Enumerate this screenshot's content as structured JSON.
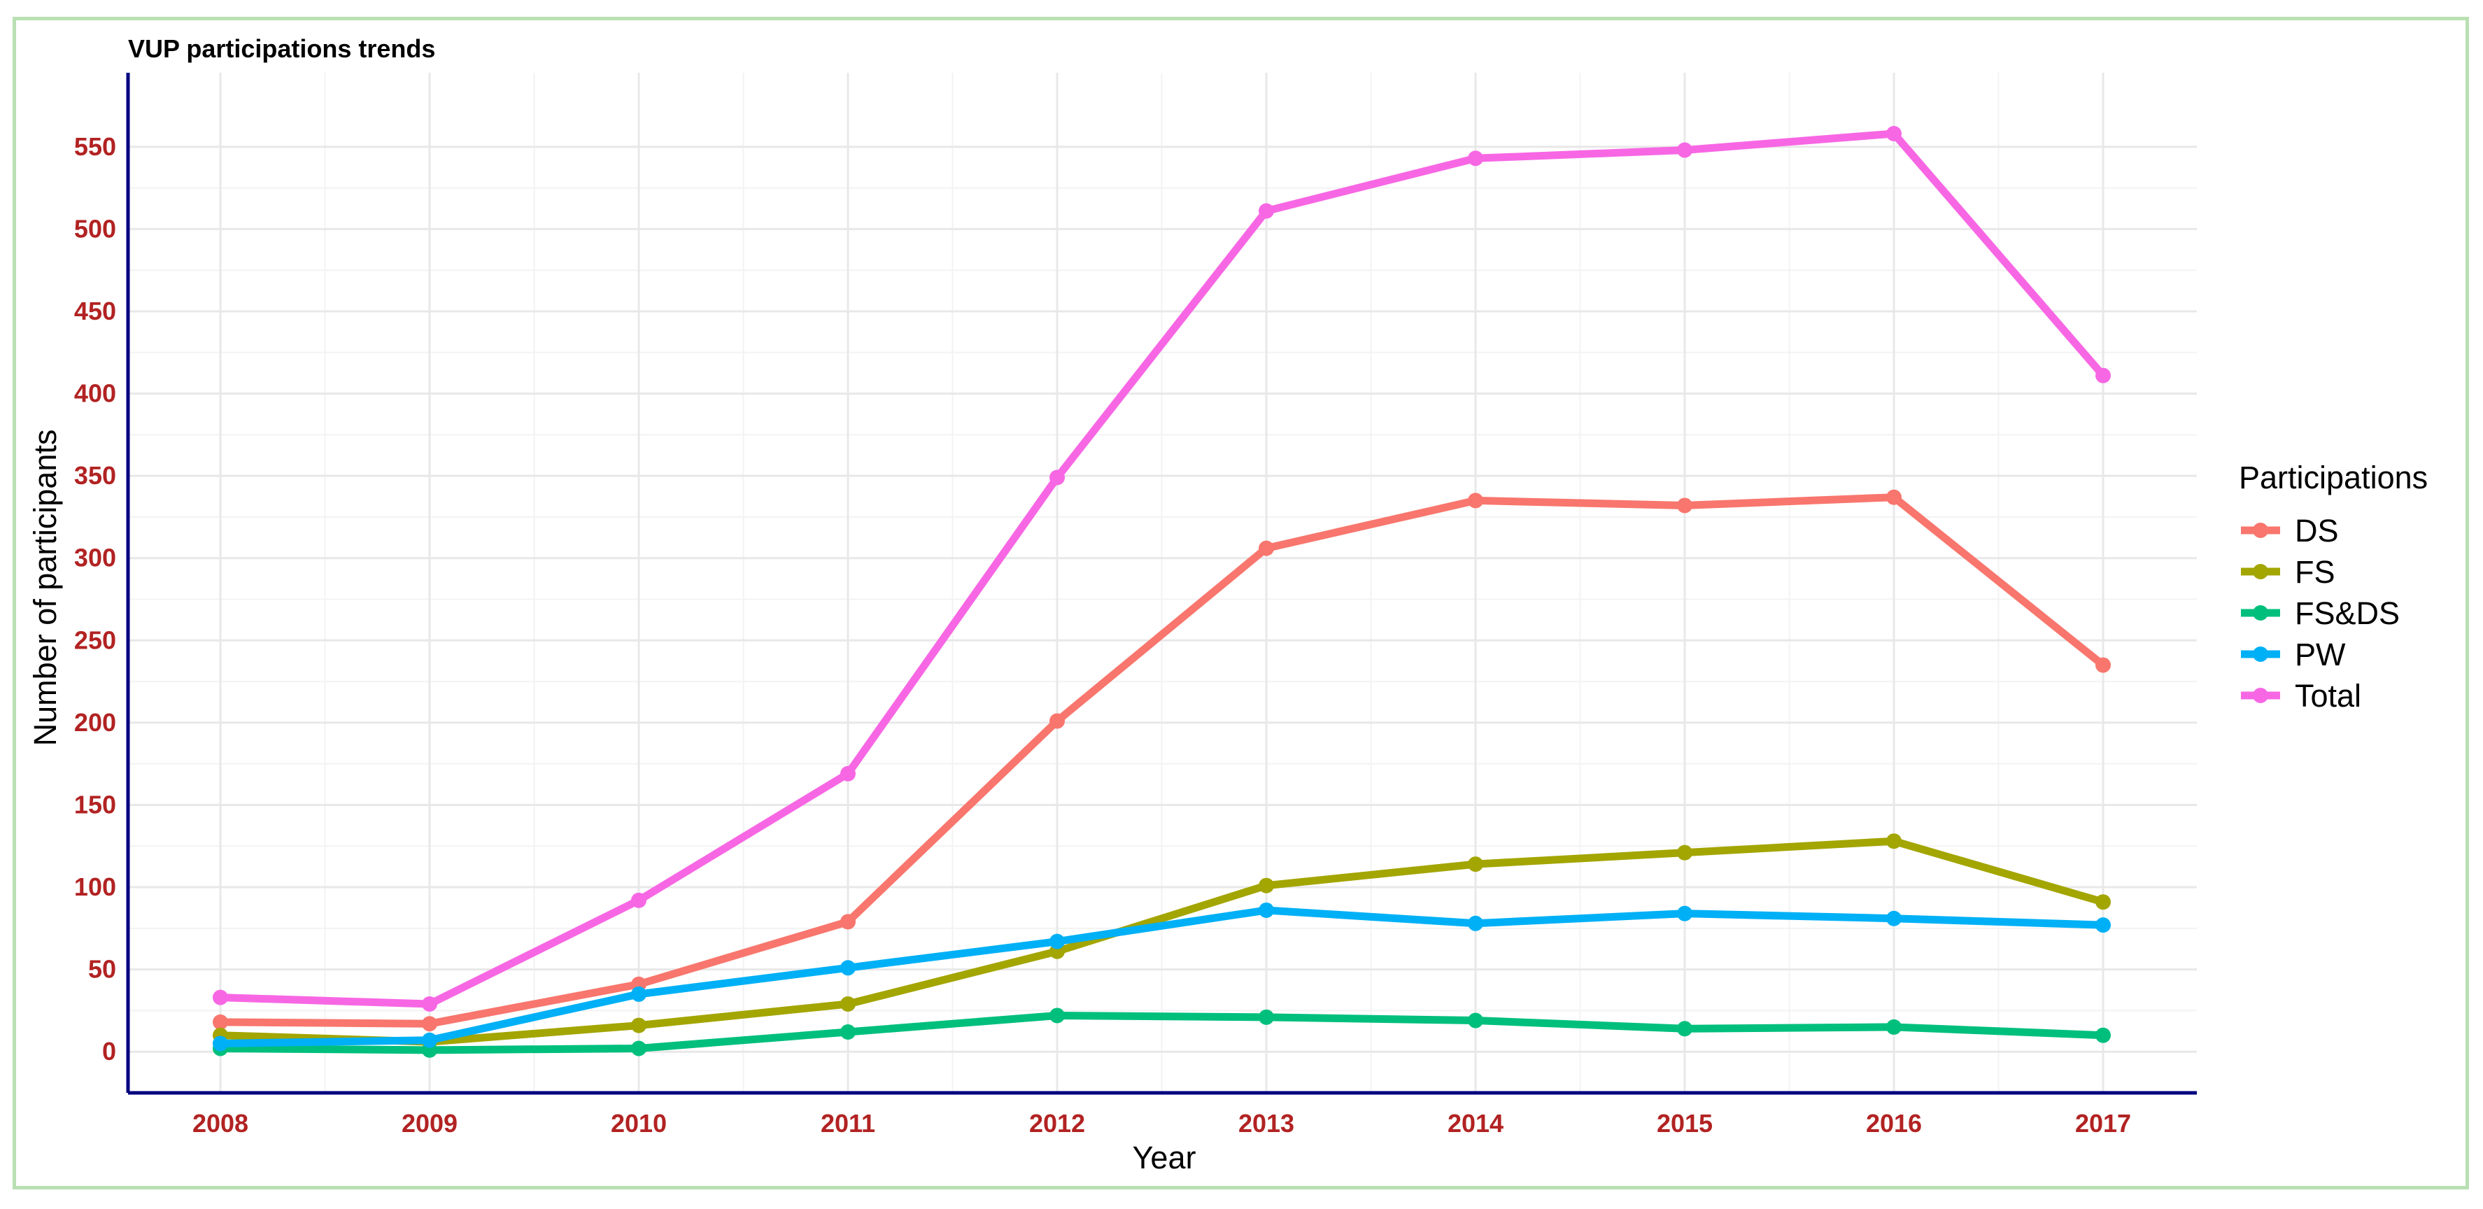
{
  "chart_data": {
    "type": "line",
    "title": "VUP participations trends",
    "xlabel": "Year",
    "ylabel": "Number of participants",
    "categories": [
      "2008",
      "2009",
      "2010",
      "2011",
      "2012",
      "2013",
      "2014",
      "2015",
      "2016",
      "2017"
    ],
    "y_ticks": [
      0,
      50,
      100,
      150,
      200,
      250,
      300,
      350,
      400,
      450,
      500,
      550
    ],
    "ylim": [
      -25,
      595
    ],
    "grid": true,
    "legend_title": "Participations",
    "legend_position": "right",
    "tick_label_color": "#b22222",
    "axis_line_color": "#00007f",
    "series": [
      {
        "name": "DS",
        "color": "#f8766d",
        "values": [
          18,
          17,
          41,
          79,
          201,
          306,
          335,
          332,
          337,
          235
        ]
      },
      {
        "name": "FS",
        "color": "#a3a500",
        "values": [
          10,
          6,
          16,
          29,
          61,
          101,
          114,
          121,
          128,
          91
        ]
      },
      {
        "name": "FS&DS",
        "color": "#00bf7d",
        "values": [
          2,
          1,
          2,
          12,
          22,
          21,
          19,
          14,
          15,
          10
        ]
      },
      {
        "name": "PW",
        "color": "#00b0f6",
        "values": [
          5,
          7,
          35,
          51,
          67,
          86,
          78,
          84,
          81,
          77
        ]
      },
      {
        "name": "Total",
        "color": "#f767e4",
        "values": [
          33,
          29,
          92,
          169,
          349,
          511,
          543,
          548,
          558,
          411
        ]
      }
    ]
  }
}
